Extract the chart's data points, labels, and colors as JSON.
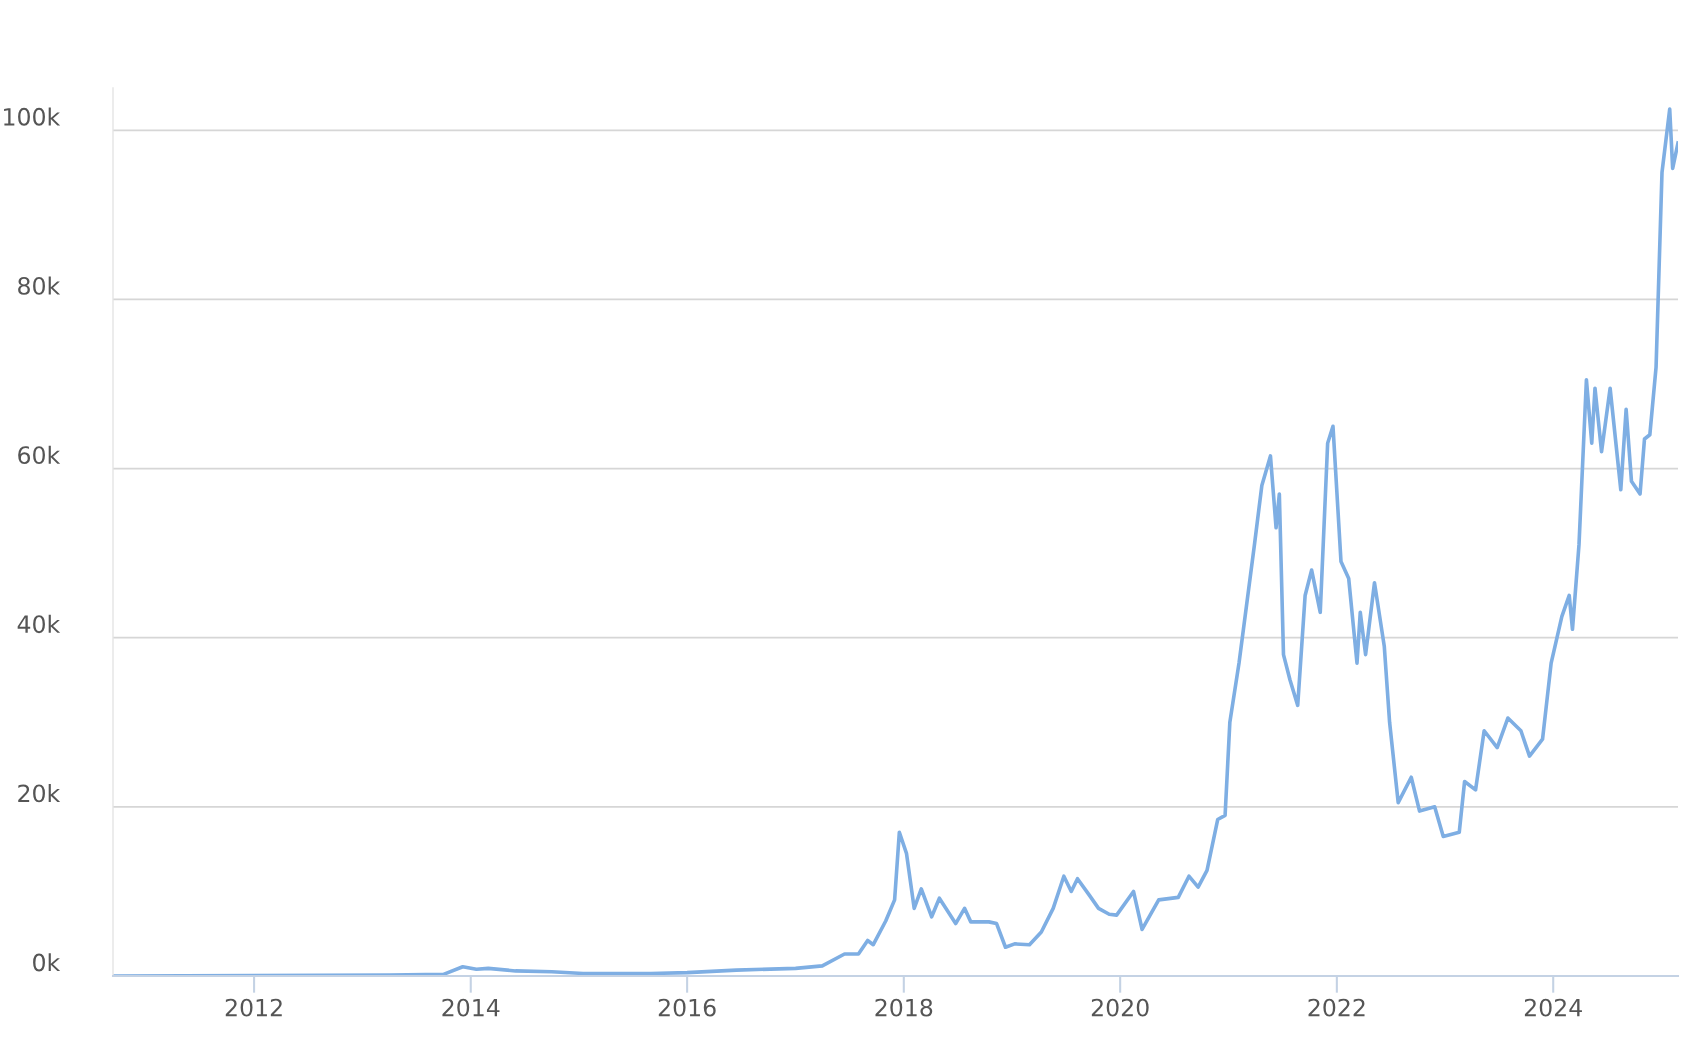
{
  "chart_data": {
    "type": "line",
    "x": [
      "2010-09-12",
      "2013-04-01",
      "2013-10-01",
      "2013-12-05",
      "2014-01-20",
      "2014-03-01",
      "2014-06-01",
      "2014-10-01",
      "2015-01-15",
      "2015-09-01",
      "2016-01-01",
      "2016-06-15",
      "2017-01-01",
      "2017-04-01",
      "2017-06-15",
      "2017-08-01",
      "2017-09-01",
      "2017-09-20",
      "2017-11-01",
      "2017-12-01",
      "2017-12-17",
      "2018-01-10",
      "2018-02-05",
      "2018-03-01",
      "2018-04-05",
      "2018-05-01",
      "2018-06-25",
      "2018-07-25",
      "2018-08-15",
      "2018-10-15",
      "2018-11-10",
      "2018-12-10",
      "2019-01-10",
      "2019-03-01",
      "2019-04-10",
      "2019-05-20",
      "2019-06-25",
      "2019-07-20",
      "2019-08-10",
      "2019-09-20",
      "2019-10-20",
      "2019-11-25",
      "2019-12-20",
      "2020-02-15",
      "2020-03-15",
      "2020-05-10",
      "2020-07-15",
      "2020-08-20",
      "2020-09-20",
      "2020-10-20",
      "2020-11-25",
      "2020-12-20",
      "2021-01-05",
      "2021-02-05",
      "2021-03-29",
      "2021-04-23",
      "2021-05-22",
      "2021-06-10",
      "2021-06-21",
      "2021-07-05",
      "2021-07-27",
      "2021-08-22",
      "2021-09-16",
      "2021-10-08",
      "2021-11-06",
      "2021-12-01",
      "2021-12-19",
      "2022-01-15",
      "2022-02-10",
      "2022-03-10",
      "2022-03-21",
      "2022-04-08",
      "2022-05-08",
      "2022-06-10",
      "2022-06-28",
      "2022-07-27",
      "2022-09-09",
      "2022-10-07",
      "2022-11-27",
      "2022-12-26",
      "2023-02-18",
      "2023-03-08",
      "2023-04-14",
      "2023-05-13",
      "2023-06-26",
      "2023-08-01",
      "2023-09-14",
      "2023-10-13",
      "2023-11-26",
      "2023-12-25",
      "2024-01-30",
      "2024-02-24",
      "2024-03-06",
      "2024-03-28",
      "2024-04-22",
      "2024-05-10",
      "2024-05-21",
      "2024-06-12",
      "2024-07-11",
      "2024-08-16",
      "2024-09-03",
      "2024-09-21",
      "2024-10-20",
      "2024-11-04",
      "2024-11-22",
      "2024-12-13",
      "2025-01-02",
      "2025-01-28",
      "2025-02-07",
      "2025-02-25"
    ],
    "series": [
      {
        "color": "#7eaee3",
        "values": [
          0,
          0.1,
          0.2,
          1.1,
          0.8,
          0.9,
          0.6,
          0.5,
          0.3,
          0.3,
          0.4,
          0.7,
          0.9,
          1.2,
          2.6,
          2.6,
          4.2,
          3.7,
          6.5,
          9,
          17,
          14.5,
          8,
          10.3,
          7,
          9.2,
          6.2,
          8,
          6.4,
          6.4,
          6.2,
          3.4,
          3.8,
          3.7,
          5.2,
          8,
          11.8,
          10,
          11.5,
          9.5,
          8,
          7.3,
          7.2,
          10,
          5.5,
          9,
          9.3,
          11.8,
          10.5,
          12.5,
          18.5,
          19,
          30,
          37,
          51,
          58,
          61.5,
          53,
          57,
          38,
          35,
          32,
          45,
          48,
          43,
          63,
          65,
          49,
          47,
          37,
          43,
          38,
          46.5,
          39,
          30,
          20.5,
          23.5,
          19.5,
          20,
          16.5,
          17,
          23,
          22,
          29,
          27,
          30.5,
          29,
          26,
          28,
          37,
          42.5,
          45,
          41,
          51,
          70.5,
          63,
          69.5,
          62,
          69.5,
          57.5,
          67,
          58.5,
          57,
          63.5,
          64,
          72,
          95,
          102.5,
          95.5,
          98.5
        ]
      }
    ],
    "xlim": [
      "2010-09-12",
      "2025-02-25"
    ],
    "xticks": [
      {
        "value": "2012-01-01",
        "label": "2012"
      },
      {
        "value": "2014-01-01",
        "label": "2014"
      },
      {
        "value": "2016-01-01",
        "label": "2016"
      },
      {
        "value": "2018-01-01",
        "label": "2018"
      },
      {
        "value": "2020-01-01",
        "label": "2020"
      },
      {
        "value": "2022-01-01",
        "label": "2022"
      },
      {
        "value": "2024-01-01",
        "label": "2024"
      }
    ],
    "ylim": [
      0,
      105
    ],
    "yticks": [
      {
        "value": 0,
        "label": "0k"
      },
      {
        "value": 20,
        "label": "20k"
      },
      {
        "value": 40,
        "label": "40k"
      },
      {
        "value": 60,
        "label": "60k"
      },
      {
        "value": 80,
        "label": "80k"
      },
      {
        "value": 100,
        "label": "100k"
      }
    ],
    "grid": "y",
    "marker": "none",
    "line_style": "solid"
  }
}
